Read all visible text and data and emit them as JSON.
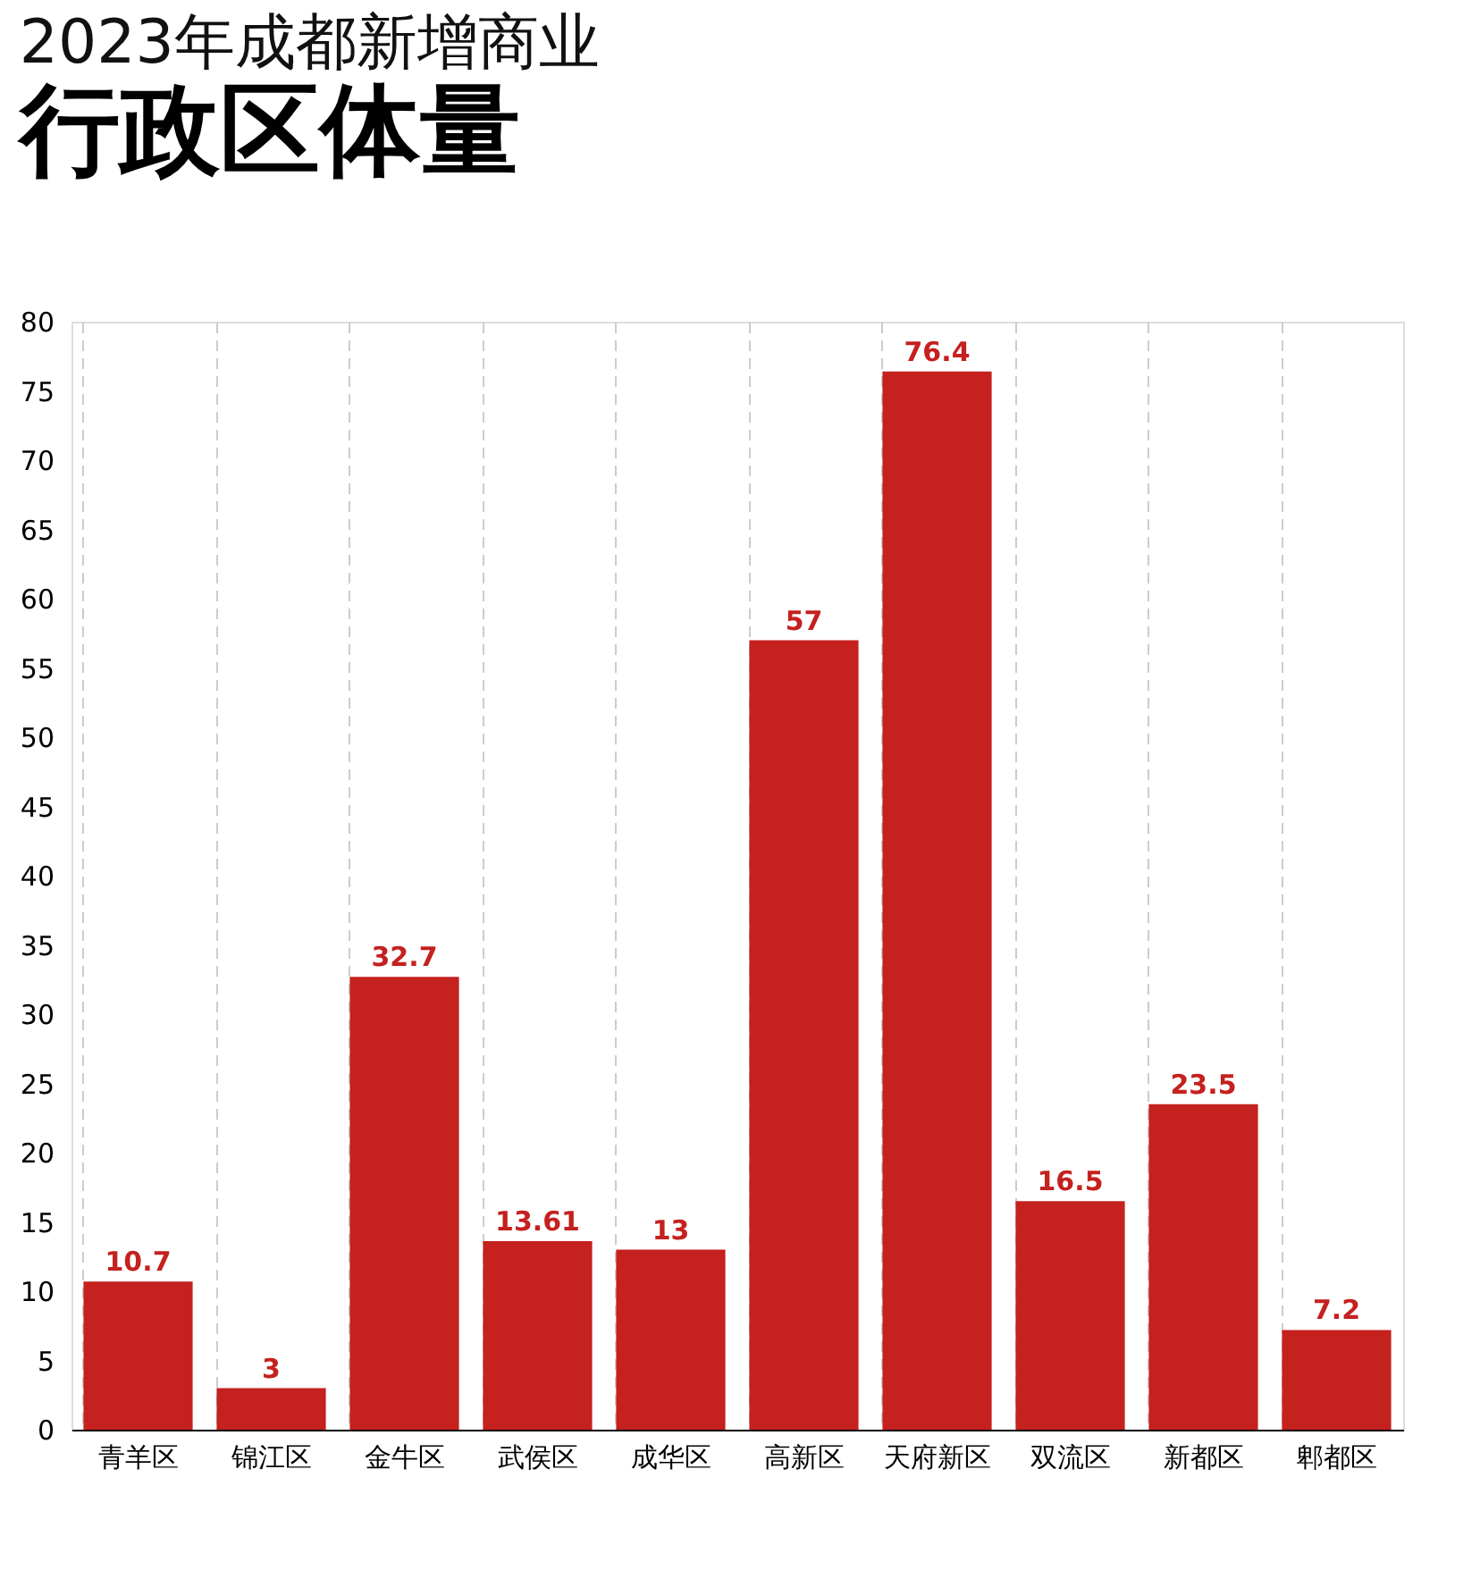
{
  "chart_data": {
    "type": "bar",
    "title": "2023年成都新增商业",
    "subtitle": "行政区体量",
    "categories": [
      "青羊区",
      "锦江区",
      "金牛区",
      "武侯区",
      "成华区",
      "高新区",
      "天府新区",
      "双流区",
      "新都区",
      "郫都区"
    ],
    "values": [
      10.7,
      3,
      32.7,
      13.61,
      13,
      57,
      76.4,
      16.5,
      23.5,
      7.2
    ],
    "color": "#c4211f",
    "ylim": [
      0,
      80
    ],
    "yticks": [
      0,
      5,
      10,
      15,
      20,
      25,
      30,
      35,
      40,
      45,
      50,
      55,
      60,
      65,
      70,
      75,
      80
    ],
    "grid": "x",
    "data_labels": true
  }
}
